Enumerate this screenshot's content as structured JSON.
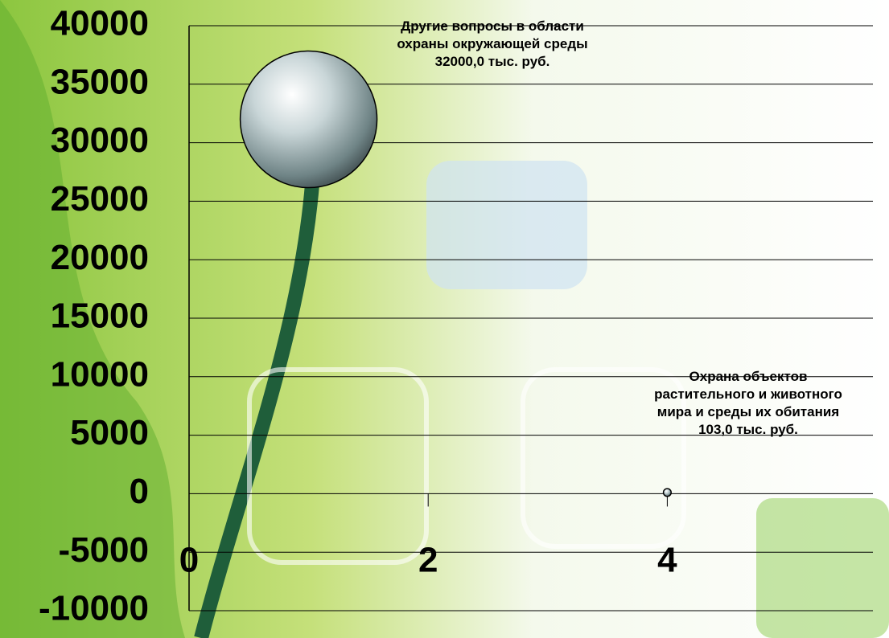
{
  "chart_data": {
    "type": "bubble",
    "x": [
      1,
      4
    ],
    "values": [
      32000,
      103
    ],
    "sizes": [
      32000,
      103
    ],
    "names": [
      "Другие вопросы в области охраны окружающей среды",
      "Охрана объектов растительного и животного мира и среды их обитания"
    ],
    "value_labels": [
      "32000,0 тыс. руб.",
      "103,0 тыс. руб."
    ],
    "xlim": [
      0,
      5.72
    ],
    "xticks": [
      0,
      2,
      4
    ],
    "ylim": [
      -10000,
      40000
    ],
    "yticks": [
      -10000,
      -5000,
      0,
      5000,
      10000,
      15000,
      20000,
      25000,
      30000,
      35000,
      40000
    ],
    "grid": true
  }
}
